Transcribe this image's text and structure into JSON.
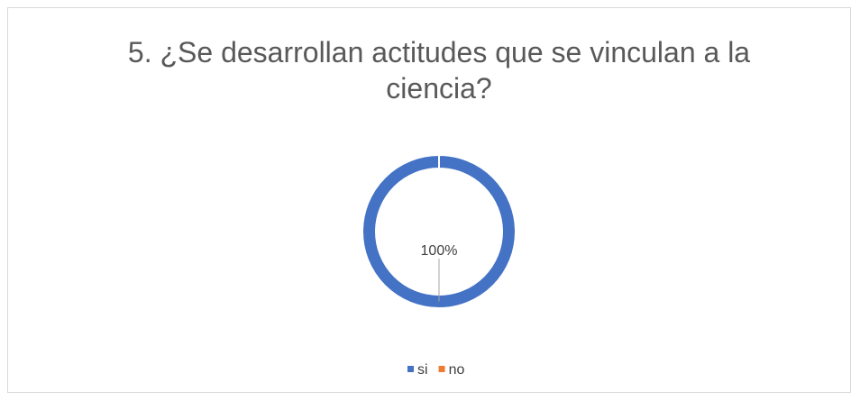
{
  "chart_data": {
    "type": "doughnut",
    "title": "5. ¿Se desarrollan actitudes que se vinculan a la ciencia?",
    "categories": [
      "si",
      "no"
    ],
    "values": [
      100,
      0
    ],
    "value_labels": [
      "100%",
      null
    ],
    "colors": [
      "#4472c4",
      "#ed7d31"
    ],
    "legend": "bottom"
  }
}
